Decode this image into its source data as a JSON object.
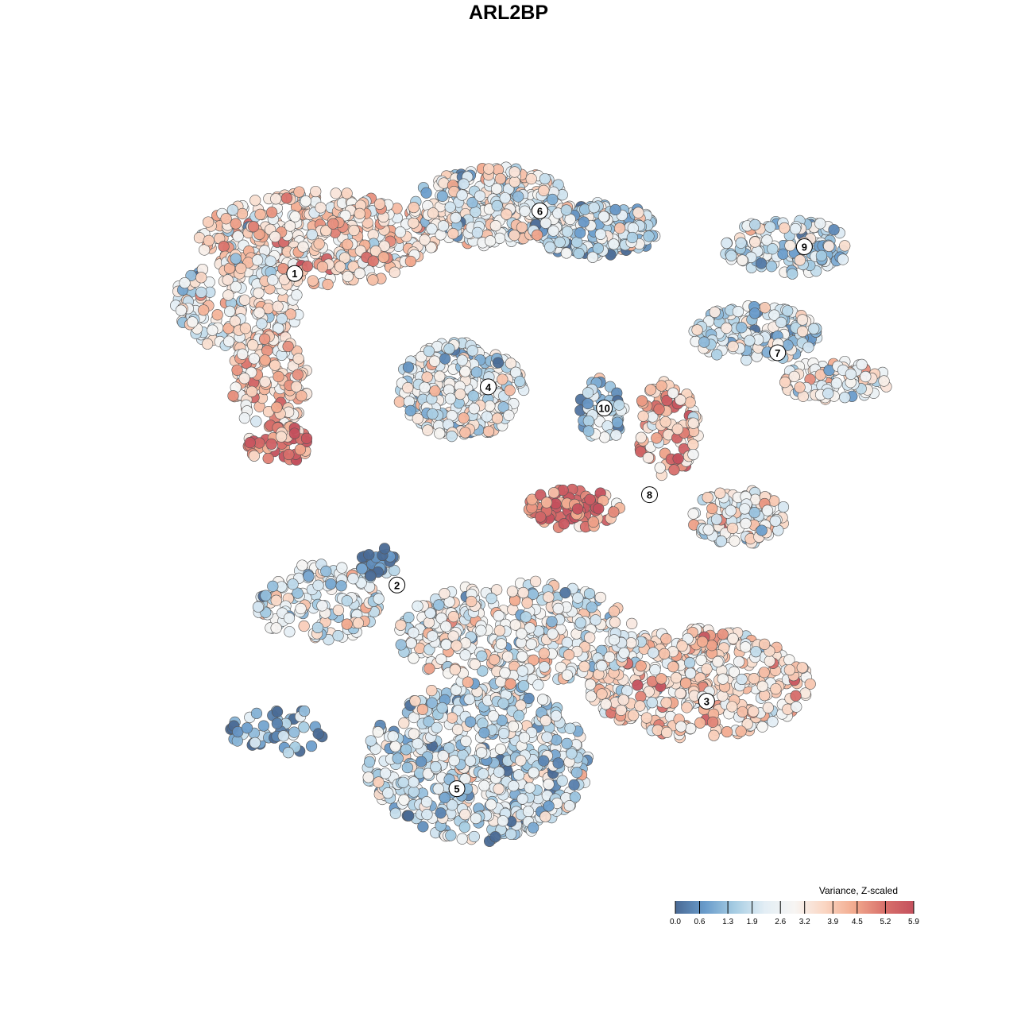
{
  "chart_data": {
    "type": "scatter",
    "title": "ARL2BP",
    "xlabel": "",
    "ylabel": "",
    "grid": false,
    "xlim": [
      -38,
      42
    ],
    "ylim": [
      -39,
      39
    ],
    "color_scale": {
      "title": "Variance, Z-scaled",
      "range": [
        0.0,
        5.9
      ],
      "ticks": [
        "0.0",
        "0.6",
        "1.3",
        "1.9",
        "2.6",
        "3.2",
        "3.9",
        "4.5",
        "5.2",
        "5.9"
      ],
      "colors": [
        "#4a6a95",
        "#6a9ccb",
        "#a7cde3",
        "#e3eef5",
        "#f7f5f3",
        "#fad6c3",
        "#f2aa8e",
        "#d9726c",
        "#c4505d"
      ],
      "placement": "bottom-right"
    },
    "clusters": [
      {
        "label": "1",
        "label_pos": [
          -23.2,
          25.5
        ]
      },
      {
        "label": "2",
        "label_pos": [
          -12.1,
          -8.3
        ]
      },
      {
        "label": "3",
        "label_pos": [
          21.5,
          -20.9
        ]
      },
      {
        "label": "4",
        "label_pos": [
          -2.2,
          13.2
        ]
      },
      {
        "label": "5",
        "label_pos": [
          -5.6,
          -30.4
        ]
      },
      {
        "label": "6",
        "label_pos": [
          3.4,
          32.3
        ]
      },
      {
        "label": "7",
        "label_pos": [
          29.2,
          16.9
        ]
      },
      {
        "label": "8",
        "label_pos": [
          15.3,
          1.5
        ]
      },
      {
        "label": "9",
        "label_pos": [
          32.1,
          28.4
        ]
      },
      {
        "label": "10",
        "label_pos": [
          10.4,
          10.9
        ]
      }
    ],
    "point_groups": [
      {
        "cluster": "1",
        "center": [
          -20.7,
          29.3
        ],
        "spread": [
          12.9,
          5.2
        ],
        "n": 420,
        "mean_value": 3.4
      },
      {
        "cluster": "1",
        "center": [
          -29.3,
          22.4
        ],
        "spread": [
          6.9,
          5.2
        ],
        "n": 200,
        "mean_value": 2.9
      },
      {
        "cluster": "1",
        "center": [
          -25.9,
          13.8
        ],
        "spread": [
          4.3,
          5.2
        ],
        "n": 130,
        "mean_value": 3.8
      },
      {
        "cluster": "1",
        "center": [
          -25.0,
          6.9
        ],
        "spread": [
          3.4,
          2.2
        ],
        "n": 50,
        "mean_value": 4.9
      },
      {
        "cluster": "6",
        "center": [
          -1.7,
          32.8
        ],
        "spread": [
          8.6,
          4.3
        ],
        "n": 300,
        "mean_value": 2.6
      },
      {
        "cluster": "6",
        "center": [
          9.5,
          30.2
        ],
        "spread": [
          6.9,
          3.0
        ],
        "n": 200,
        "mean_value": 1.9
      },
      {
        "cluster": "9",
        "center": [
          30.2,
          28.4
        ],
        "spread": [
          6.9,
          3.0
        ],
        "n": 150,
        "mean_value": 2.1
      },
      {
        "cluster": "7",
        "center": [
          26.7,
          19.0
        ],
        "spread": [
          6.9,
          3.0
        ],
        "n": 150,
        "mean_value": 2.0
      },
      {
        "cluster": "7",
        "center": [
          35.3,
          13.8
        ],
        "spread": [
          6.0,
          2.2
        ],
        "n": 100,
        "mean_value": 2.9
      },
      {
        "cluster": "4",
        "center": [
          -5.2,
          12.9
        ],
        "spread": [
          6.9,
          5.2
        ],
        "n": 300,
        "mean_value": 2.6
      },
      {
        "cluster": "10",
        "center": [
          10.3,
          10.8
        ],
        "spread": [
          2.6,
          3.4
        ],
        "n": 50,
        "mean_value": 1.5
      },
      {
        "cluster": "8",
        "center": [
          17.2,
          8.6
        ],
        "spread": [
          3.4,
          5.2
        ],
        "n": 100,
        "mean_value": 4.0
      },
      {
        "cluster": "8",
        "center": [
          6.9,
          0.0
        ],
        "spread": [
          5.2,
          2.2
        ],
        "n": 80,
        "mean_value": 5.1
      },
      {
        "cluster": "8",
        "center": [
          25.0,
          -0.9
        ],
        "spread": [
          5.2,
          3.0
        ],
        "n": 120,
        "mean_value": 2.8
      },
      {
        "cluster": "2",
        "center": [
          -20.7,
          -10.3
        ],
        "spread": [
          6.9,
          4.3
        ],
        "n": 150,
        "mean_value": 2.5
      },
      {
        "cluster": "2",
        "center": [
          -13.8,
          -6.0
        ],
        "spread": [
          2.6,
          1.7
        ],
        "n": 30,
        "mean_value": 0.5
      },
      {
        "cluster": "3",
        "center": [
          20.7,
          -19.0
        ],
        "spread": [
          12.1,
          6.0
        ],
        "n": 420,
        "mean_value": 3.4
      },
      {
        "cluster": "5",
        "center": [
          -3.4,
          -27.6
        ],
        "spread": [
          12.1,
          8.6
        ],
        "n": 600,
        "mean_value": 2.0
      },
      {
        "cluster": "5",
        "center": [
          0.9,
          -13.8
        ],
        "spread": [
          12.9,
          6.0
        ],
        "n": 400,
        "mean_value": 2.8
      },
      {
        "cluster": "5",
        "center": [
          -25.0,
          -24.1
        ],
        "spread": [
          5.2,
          2.6
        ],
        "n": 50,
        "mean_value": 1.0
      }
    ]
  }
}
